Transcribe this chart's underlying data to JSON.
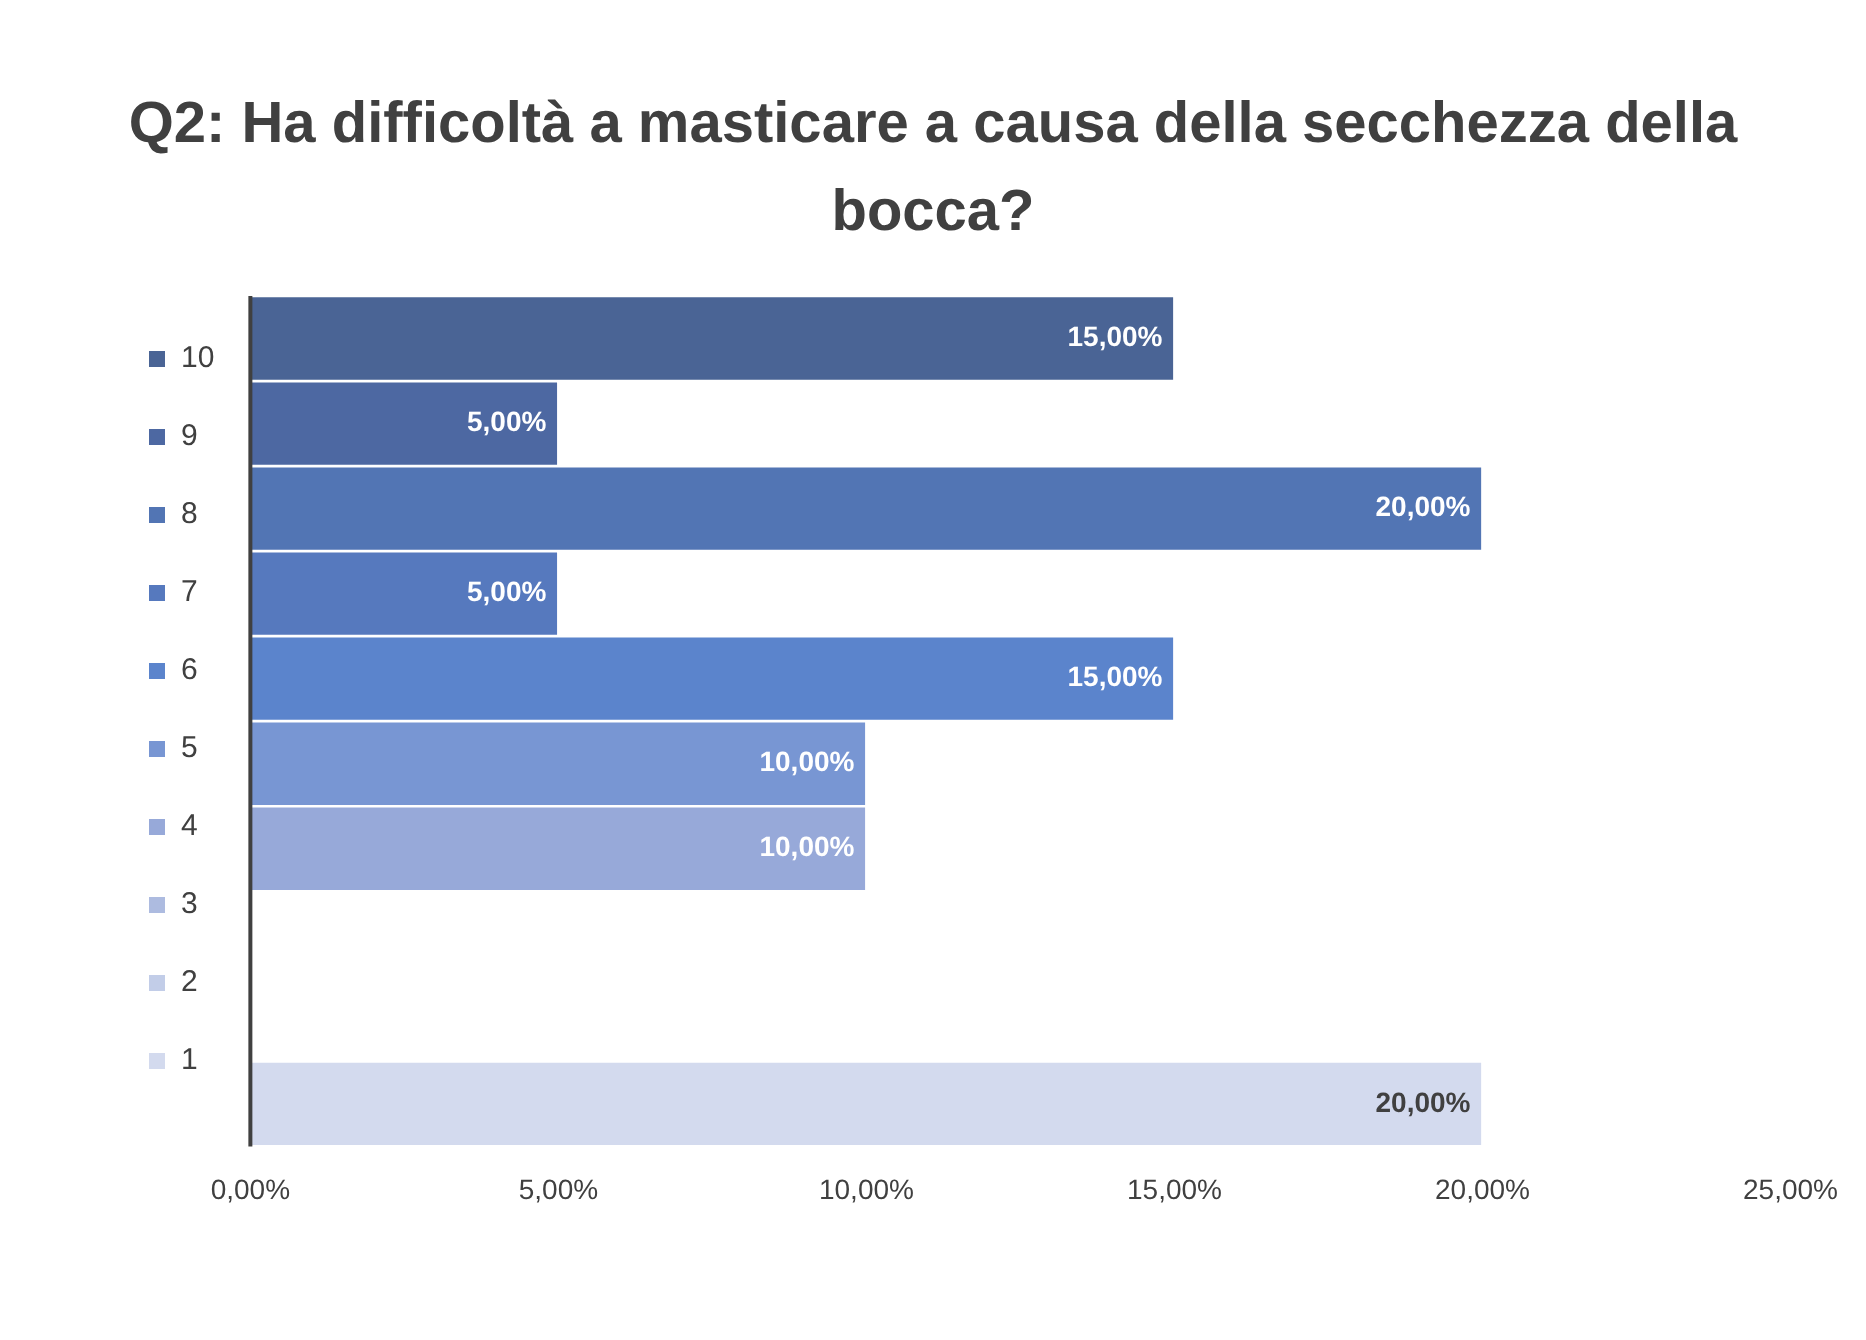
{
  "chart_data": {
    "type": "bar",
    "orientation": "horizontal",
    "title": "Q2: Ha difficoltà a masticare a causa della secchezza della bocca?",
    "categories": [
      null
    ],
    "series": [
      {
        "name": "10",
        "color": "#4a6495",
        "values": [
          15
        ],
        "value_labels": [
          "15,00%"
        ]
      },
      {
        "name": "9",
        "color": "#4d68a2",
        "values": [
          5
        ],
        "value_labels": [
          "5,00%"
        ]
      },
      {
        "name": "8",
        "color": "#5275b4",
        "values": [
          20
        ],
        "value_labels": [
          "20,00%"
        ]
      },
      {
        "name": "7",
        "color": "#5679be",
        "values": [
          5
        ],
        "value_labels": [
          "5,00%"
        ]
      },
      {
        "name": "6",
        "color": "#5b84cc",
        "values": [
          15
        ],
        "value_labels": [
          "15,00%"
        ]
      },
      {
        "name": "5",
        "color": "#7896d3",
        "values": [
          10
        ],
        "value_labels": [
          "10,00%"
        ]
      },
      {
        "name": "4",
        "color": "#97a9d9",
        "values": [
          10
        ],
        "value_labels": [
          "10,00%"
        ]
      },
      {
        "name": "3",
        "color": "#adbbe0",
        "values": [
          null
        ],
        "value_labels": [
          null
        ]
      },
      {
        "name": "2",
        "color": "#c2cde8",
        "values": [
          null
        ],
        "value_labels": [
          null
        ]
      },
      {
        "name": "1",
        "color": "#d3daee",
        "values": [
          20
        ],
        "value_labels": [
          "20,00%"
        ]
      }
    ],
    "xlim": [
      0,
      25
    ],
    "xticks": [
      {
        "value": 0,
        "label": "0,00%"
      },
      {
        "value": 5,
        "label": "5,00%"
      },
      {
        "value": 10,
        "label": "10,00%"
      },
      {
        "value": 15,
        "label": "15,00%"
      },
      {
        "value": 20,
        "label": "20,00%"
      },
      {
        "value": 25,
        "label": "25,00%"
      }
    ],
    "grid": false,
    "legend": "left"
  }
}
